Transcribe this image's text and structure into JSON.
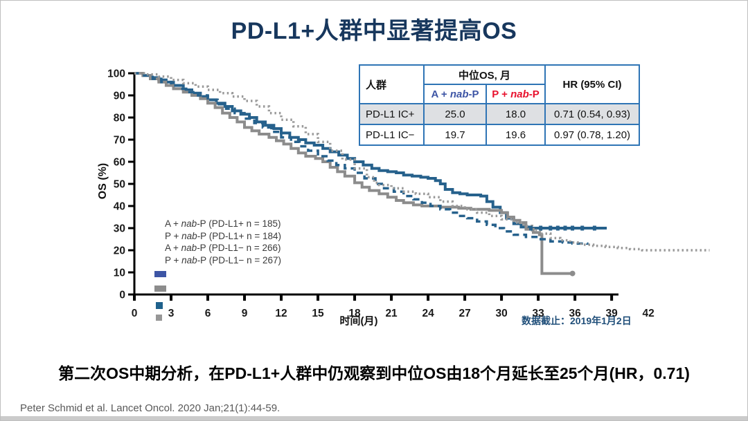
{
  "slide": {
    "title": "PD-L1+人群中显著提高OS",
    "statement": "第二次OS中期分析，在PD-L1+人群中仍观察到中位OS由18个月延长至25个月(HR，0.71)",
    "citation": "Peter Schmid et al. Lancet Oncol. 2020 Jan;21(1):44-59.",
    "data_cutoff": "数据截止：2019年1月2日"
  },
  "colors": {
    "title": "#17375D",
    "curve_blue": "#26618C",
    "curve_gray": "#8C8C8C",
    "curve_gray_dotted": "#9A9A9A",
    "swatch_blue_bar": "#3D55A5",
    "swatch_gray_bar": "#8C8C8C",
    "swatch_blue_sq": "#1F618C",
    "swatch_gray_sq": "#979797",
    "table_border": "#2E74B5",
    "table_shaded_row": "#DEE0E3",
    "arm_a_text": "#3D55A5",
    "arm_p_text": "#E8112D",
    "cutoff_text": "#1F4E79",
    "axis": "#000000"
  },
  "results_table": {
    "header": {
      "population": "人群",
      "median_os": "中位OS, 月",
      "arm_a": {
        "pre": "A + ",
        "it": "nab",
        "post": "-P"
      },
      "arm_p": {
        "pre": "P + ",
        "it": "nab",
        "post": "-P"
      },
      "hr": "HR (95% CI)"
    },
    "rows": [
      {
        "population": "PD-L1 IC+",
        "arm_a": "25.0",
        "arm_p": "18.0",
        "hr": "0.71 (0.54, 0.93)"
      },
      {
        "population": "PD-L1 IC−",
        "arm_a": "19.7",
        "arm_p": "19.6",
        "hr": "0.97 (0.78, 1.20)"
      }
    ]
  },
  "chart_data": {
    "type": "line",
    "subtype": "kaplan-meier-step",
    "title": "",
    "xlabel": "时间(月)",
    "ylabel": "OS (%)",
    "xlim": [
      0,
      42
    ],
    "ylim": [
      0,
      100
    ],
    "x_ticks": [
      0,
      3,
      6,
      9,
      12,
      15,
      18,
      21,
      24,
      27,
      30,
      33,
      36,
      39
    ],
    "x_extra_tick_label": "42",
    "y_ticks": [
      0,
      10,
      20,
      30,
      40,
      50,
      60,
      70,
      80,
      90,
      100
    ],
    "grid": false,
    "legend_position": "inside-left",
    "legend": [
      {
        "pre": "A + ",
        "it": "nab",
        "post": "-P (PD-L1+ n = 185)"
      },
      {
        "pre": "P + ",
        "it": "nab",
        "post": "-P (PD-L1+ n = 184)"
      },
      {
        "pre": "A + ",
        "it": "nab",
        "post": "-P (PD-L1− n = 266)"
      },
      {
        "pre": "P + ",
        "it": "nab",
        "post": "-P (PD-L1− n = 267)"
      }
    ],
    "series": [
      {
        "name": "A + nab-P (PD-L1+)",
        "n": 185,
        "median_os_months": 25.0,
        "style": "solid",
        "color": "#26618C",
        "width": 4,
        "points": [
          [
            0,
            100
          ],
          [
            0.7,
            99
          ],
          [
            1.3,
            98
          ],
          [
            2,
            97
          ],
          [
            2.6,
            96
          ],
          [
            3.2,
            94.5
          ],
          [
            4,
            92.5
          ],
          [
            4.7,
            91
          ],
          [
            5.4,
            89.5
          ],
          [
            6,
            88
          ],
          [
            6.7,
            86.5
          ],
          [
            7.4,
            85
          ],
          [
            8,
            83
          ],
          [
            8.7,
            81.5
          ],
          [
            9.4,
            80
          ],
          [
            10,
            78
          ],
          [
            10.7,
            76.5
          ],
          [
            11.4,
            75
          ],
          [
            12,
            73
          ],
          [
            12.7,
            71
          ],
          [
            13.4,
            70
          ],
          [
            14,
            68.5
          ],
          [
            14.7,
            67.5
          ],
          [
            15.4,
            66
          ],
          [
            16,
            64.5
          ],
          [
            16.7,
            63
          ],
          [
            17.4,
            61.5
          ],
          [
            18,
            60
          ],
          [
            18.7,
            58.5
          ],
          [
            19.4,
            57
          ],
          [
            20,
            56
          ],
          [
            20.7,
            55.5
          ],
          [
            21.4,
            55
          ],
          [
            22,
            54
          ],
          [
            22.7,
            53.5
          ],
          [
            23.4,
            53
          ],
          [
            24,
            52.5
          ],
          [
            24.6,
            51.5
          ],
          [
            25,
            50
          ],
          [
            25.4,
            47.5
          ],
          [
            26,
            46
          ],
          [
            26.6,
            45.5
          ],
          [
            27.2,
            45
          ],
          [
            28.3,
            44.5
          ],
          [
            28.8,
            42
          ],
          [
            29.3,
            39.5
          ],
          [
            29.9,
            37
          ],
          [
            30.4,
            34.5
          ],
          [
            31,
            32
          ],
          [
            31.6,
            30.5
          ],
          [
            32.2,
            30
          ],
          [
            38.6,
            30
          ]
        ]
      },
      {
        "name": "P + nab-P (PD-L1+)",
        "n": 184,
        "median_os_months": 18.0,
        "style": "solid",
        "color": "#8C8C8C",
        "width": 4,
        "points": [
          [
            0,
            100
          ],
          [
            0.7,
            99
          ],
          [
            1.3,
            97.5
          ],
          [
            2,
            96
          ],
          [
            2.6,
            94.5
          ],
          [
            3.2,
            93
          ],
          [
            4,
            91.5
          ],
          [
            4.7,
            90
          ],
          [
            5.4,
            88.5
          ],
          [
            6,
            86.5
          ],
          [
            6.6,
            84.5
          ],
          [
            7.2,
            82
          ],
          [
            7.8,
            80
          ],
          [
            8.4,
            78
          ],
          [
            9,
            75.5
          ],
          [
            9.6,
            74
          ],
          [
            10.2,
            72.5
          ],
          [
            11,
            71
          ],
          [
            11.6,
            69.5
          ],
          [
            12.2,
            68
          ],
          [
            12.8,
            66
          ],
          [
            13.4,
            64
          ],
          [
            14,
            62.5
          ],
          [
            14.8,
            61.5
          ],
          [
            15.4,
            60
          ],
          [
            16,
            57.5
          ],
          [
            16.6,
            55.5
          ],
          [
            17.2,
            53.5
          ],
          [
            18,
            50.5
          ],
          [
            18.6,
            48.5
          ],
          [
            19.2,
            47
          ],
          [
            20,
            45.5
          ],
          [
            20.7,
            44
          ],
          [
            21.4,
            42.5
          ],
          [
            22,
            41.5
          ],
          [
            22.8,
            40.5
          ],
          [
            23.5,
            40
          ],
          [
            25,
            39.5
          ],
          [
            26.5,
            39
          ],
          [
            27.5,
            38.5
          ],
          [
            29,
            38
          ],
          [
            30,
            37
          ],
          [
            30.5,
            35
          ],
          [
            31,
            33.5
          ],
          [
            31.5,
            32.5
          ],
          [
            32,
            29.5
          ],
          [
            32.6,
            28
          ],
          [
            33.1,
            27
          ],
          [
            33.3,
            9.5
          ],
          [
            35.8,
            9.5
          ]
        ]
      },
      {
        "name": "A + nab-P (PD-L1−)",
        "n": 266,
        "median_os_months": 19.7,
        "style": "dashed",
        "color": "#26618C",
        "width": 3.5,
        "points": [
          [
            0,
            100
          ],
          [
            0.8,
            99
          ],
          [
            1.5,
            97.5
          ],
          [
            2.2,
            96
          ],
          [
            3,
            94.5
          ],
          [
            3.8,
            93
          ],
          [
            4.5,
            91.5
          ],
          [
            5.2,
            90
          ],
          [
            6,
            88
          ],
          [
            6.8,
            86
          ],
          [
            7.5,
            84
          ],
          [
            8.2,
            82
          ],
          [
            9,
            79.5
          ],
          [
            9.8,
            77.5
          ],
          [
            10.5,
            75.5
          ],
          [
            11.2,
            73.5
          ],
          [
            12,
            71
          ],
          [
            12.8,
            69
          ],
          [
            13.5,
            67
          ],
          [
            14.2,
            65
          ],
          [
            15,
            62.5
          ],
          [
            15.8,
            60.5
          ],
          [
            16.5,
            58.5
          ],
          [
            17.2,
            57
          ],
          [
            18,
            55
          ],
          [
            18.8,
            52.5
          ],
          [
            19.7,
            50
          ],
          [
            20.4,
            48
          ],
          [
            21.2,
            46.5
          ],
          [
            22,
            44.5
          ],
          [
            22.8,
            43
          ],
          [
            23.5,
            41.5
          ],
          [
            24.2,
            40
          ],
          [
            25,
            38.5
          ],
          [
            25.8,
            37
          ],
          [
            26.5,
            35.5
          ],
          [
            27.2,
            34.5
          ],
          [
            28,
            33
          ],
          [
            28.8,
            31.5
          ],
          [
            29.5,
            30
          ],
          [
            30.2,
            28.5
          ],
          [
            31,
            27
          ],
          [
            32,
            26
          ],
          [
            33,
            25
          ],
          [
            34,
            24
          ],
          [
            35,
            23.5
          ],
          [
            35.8,
            23
          ],
          [
            37,
            22.5
          ]
        ]
      },
      {
        "name": "P + nab-P (PD-L1−)",
        "n": 267,
        "median_os_months": 19.6,
        "style": "dotted",
        "color": "#9A9A9A",
        "width": 3.5,
        "points": [
          [
            0,
            100
          ],
          [
            1,
            99.5
          ],
          [
            2,
            98.5
          ],
          [
            3,
            97
          ],
          [
            4,
            95.5
          ],
          [
            5,
            94
          ],
          [
            6,
            92.5
          ],
          [
            7,
            91
          ],
          [
            8,
            89.5
          ],
          [
            9,
            87.5
          ],
          [
            10,
            85
          ],
          [
            11,
            82
          ],
          [
            12,
            79
          ],
          [
            13,
            76
          ],
          [
            14,
            72.5
          ],
          [
            15,
            69
          ],
          [
            16,
            65
          ],
          [
            17,
            61
          ],
          [
            18,
            57
          ],
          [
            19,
            53
          ],
          [
            19.6,
            50.5
          ],
          [
            20,
            49.5
          ],
          [
            21,
            48
          ],
          [
            22,
            46.5
          ],
          [
            23,
            45.5
          ],
          [
            24,
            44
          ],
          [
            25,
            42
          ],
          [
            26,
            40
          ],
          [
            27,
            38.5
          ],
          [
            28,
            37
          ],
          [
            29,
            35.5
          ],
          [
            30,
            34
          ],
          [
            31,
            32.5
          ],
          [
            31.8,
            31
          ],
          [
            32.5,
            29
          ],
          [
            33.2,
            27.5
          ],
          [
            34,
            25.5
          ],
          [
            34.8,
            24.5
          ],
          [
            35.6,
            23.5
          ],
          [
            36.5,
            22.5
          ],
          [
            37.5,
            22
          ],
          [
            38.5,
            21.5
          ],
          [
            39.5,
            21
          ],
          [
            40.5,
            20.5
          ],
          [
            41.5,
            20
          ],
          [
            47,
            20
          ]
        ]
      }
    ],
    "censor_marks": {
      "series": "A + nab-P (PD-L1+)",
      "pct": 30,
      "months": [
        32.4,
        33.2,
        34,
        34.6,
        35.2,
        35.8,
        36.6,
        37.6
      ]
    },
    "end_markers": [
      {
        "series": "P + nab-P (PD-L1+)",
        "month": 35.8,
        "pct": 9.5
      }
    ]
  }
}
